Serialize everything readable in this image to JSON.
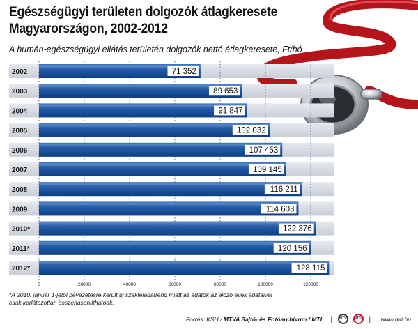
{
  "title_line1": "Egészségügyi területen dolgozók átlagkeresete",
  "title_line2": "Magyarországon, 2002-2012",
  "subtitle": "A humán-egészségügyi ellátás területén dolgozók nettó átlagkeresete, Ft/hó",
  "footnote_line1": "*A 2010. január 1-jétől bevezetésre került új szakfeladatrend miatt az adatok az előző évek adataival",
  "footnote_line2": "csak korlátozottan összehasonlíthatóak.",
  "footer": {
    "source_prefix": "Forrás: KSH / ",
    "source_bold": "MTVA Sajtó- és Fotóarchívum / MTI",
    "separator": "|",
    "url": "www.mti.hu",
    "logo_mtva": "MTVA",
    "logo_mti": "MTI"
  },
  "colors": {
    "bar_top": "#2b63ad",
    "bar_bottom": "#0d3f86",
    "label_box": "#ffffff",
    "band": "#d9dde4",
    "grid": "#4a6fa8",
    "stethoscope_red": "#c8171e",
    "stethoscope_metal": "#c9cdd2"
  },
  "chart_data": {
    "type": "bar",
    "orientation": "horizontal",
    "categories": [
      "2002",
      "2003",
      "2004",
      "2005",
      "2006",
      "2007",
      "2008",
      "2009",
      "2010*",
      "2011*",
      "2012*"
    ],
    "values": [
      71352,
      89653,
      91847,
      102032,
      107453,
      109145,
      116211,
      114603,
      122376,
      120156,
      128115
    ],
    "value_labels": [
      "71 352",
      "89 653",
      "91 847",
      "102 032",
      "107 453",
      "109 145",
      "116 211",
      "114 603",
      "122 376",
      "120 156",
      "128 115"
    ],
    "x_ticks": [
      0,
      20000,
      40000,
      60000,
      80000,
      100000,
      120000
    ],
    "x_tick_labels": [
      "0",
      "20000",
      "40000",
      "60000",
      "80000",
      "100000",
      "120000"
    ],
    "xlim": [
      0,
      128115
    ],
    "unit": "Ft/hó",
    "grid": true
  }
}
